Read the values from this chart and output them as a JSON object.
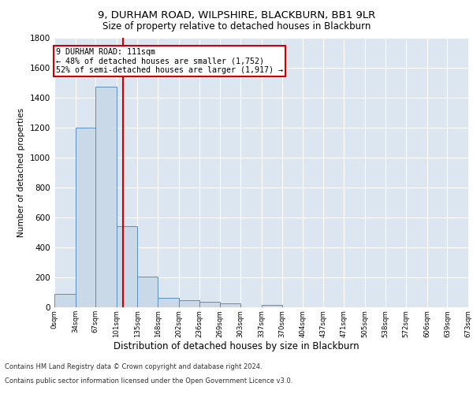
{
  "title1": "9, DURHAM ROAD, WILPSHIRE, BLACKBURN, BB1 9LR",
  "title2": "Size of property relative to detached houses in Blackburn",
  "xlabel": "Distribution of detached houses by size in Blackburn",
  "ylabel": "Number of detached properties",
  "bar_color": "#c9d9e8",
  "bar_edge_color": "#5a8fc0",
  "background_color": "#dce6f0",
  "grid_color": "#ffffff",
  "property_line_x": 111,
  "property_line_color": "#cc0000",
  "annotation_line1": "9 DURHAM ROAD: 111sqm",
  "annotation_line2": "← 48% of detached houses are smaller (1,752)",
  "annotation_line3": "52% of semi-detached houses are larger (1,917) →",
  "annotation_box_color": "#cc0000",
  "footer1": "Contains HM Land Registry data © Crown copyright and database right 2024.",
  "footer2": "Contains public sector information licensed under the Open Government Licence v3.0.",
  "bin_edges": [
    0,
    34,
    67,
    101,
    135,
    168,
    202,
    236,
    269,
    303,
    337,
    370,
    404,
    437,
    471,
    505,
    538,
    572,
    606,
    639,
    673
  ],
  "bin_labels": [
    "0sqm",
    "34sqm",
    "67sqm",
    "101sqm",
    "135sqm",
    "168sqm",
    "202sqm",
    "236sqm",
    "269sqm",
    "303sqm",
    "337sqm",
    "370sqm",
    "404sqm",
    "437sqm",
    "471sqm",
    "505sqm",
    "538sqm",
    "572sqm",
    "606sqm",
    "639sqm",
    "673sqm"
  ],
  "bar_heights": [
    90,
    1200,
    1470,
    540,
    205,
    65,
    45,
    35,
    28,
    0,
    15,
    0,
    0,
    0,
    0,
    0,
    0,
    0,
    0,
    0
  ],
  "ylim": [
    0,
    1800
  ],
  "yticks": [
    0,
    200,
    400,
    600,
    800,
    1000,
    1200,
    1400,
    1600,
    1800
  ],
  "figsize": [
    6.0,
    5.0
  ],
  "dpi": 100
}
